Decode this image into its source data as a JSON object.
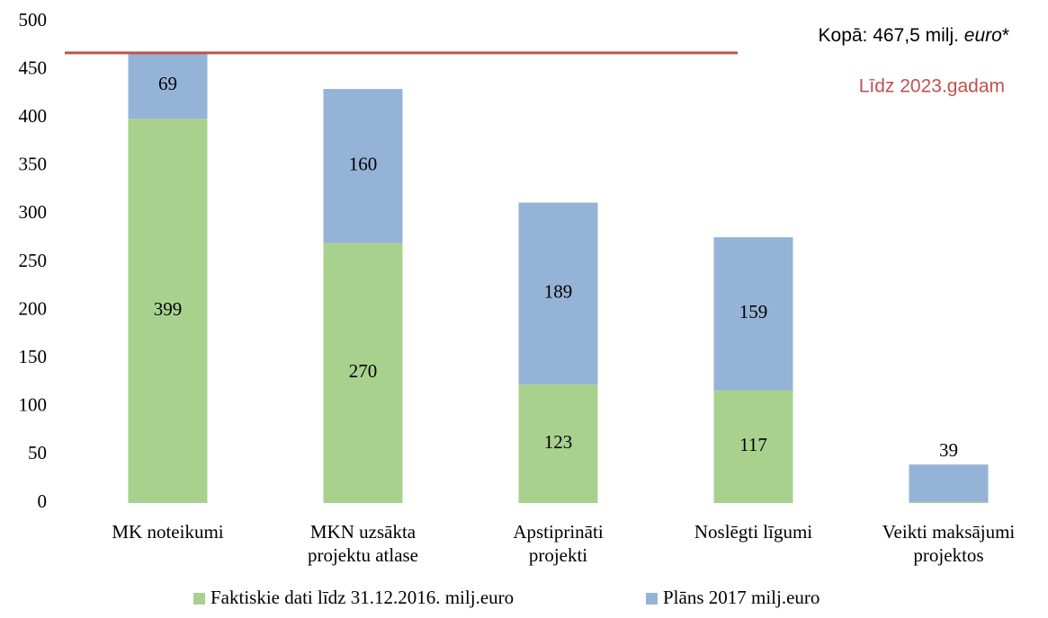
{
  "chart_data": {
    "type": "stacked_bar",
    "categories": [
      [
        "MK noteikumi"
      ],
      [
        "MKN uzsākta",
        "projektu atlase"
      ],
      [
        "Apstiprināti",
        "projekti"
      ],
      [
        "Noslēgti līgumi"
      ],
      [
        "Veikti maksājumi",
        "projektos"
      ]
    ],
    "series": [
      {
        "name": "Faktiskie dati līdz 31.12.2016. milj.euro",
        "color": "#a9d18e",
        "values": [
          399,
          270,
          123,
          117,
          1
        ]
      },
      {
        "name": "Plāns 2017 milj.euro",
        "color": "#95b3d7",
        "values": [
          69,
          160,
          189,
          159,
          39
        ]
      }
    ],
    "ylim": [
      0,
      500
    ],
    "yticks": [
      0,
      50,
      100,
      150,
      200,
      250,
      300,
      350,
      400,
      450,
      500
    ],
    "reference_line": {
      "value": 467.5,
      "color": "#c0504d",
      "label": [
        "Kopā: 467,5 milj. ",
        "euro",
        "*"
      ],
      "note": "Līdz 2023.gadam"
    },
    "legend": "bottom"
  }
}
